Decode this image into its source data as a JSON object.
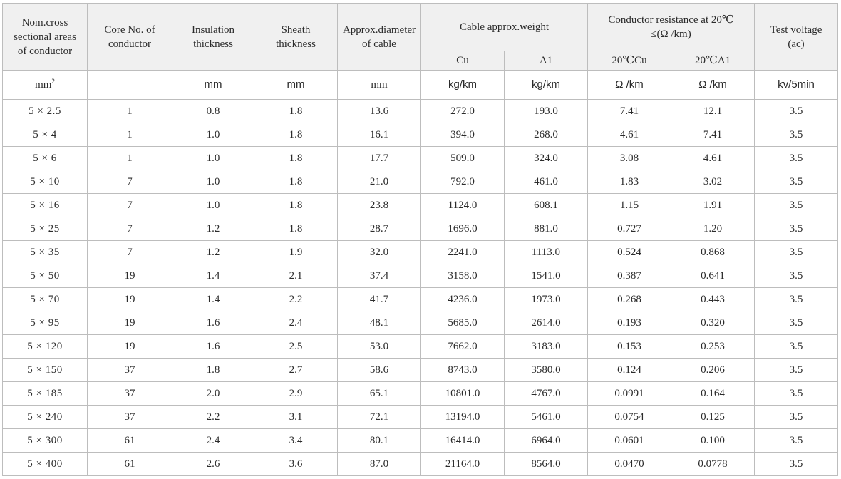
{
  "headers": {
    "nom_cross": [
      "Nom.cross",
      "sectional areas",
      "of conductor"
    ],
    "core_no": [
      "Core No. of",
      "conductor"
    ],
    "insulation": [
      "Insulation",
      "thickness"
    ],
    "sheath": [
      "Sheath",
      "thickness"
    ],
    "diameter": [
      "Approx.diameter",
      "of cable"
    ],
    "weight": "Cable approx.weight",
    "weight_cu": "Cu",
    "weight_al": "A1",
    "resistance": [
      "Conductor resistance at 20℃",
      "≤(Ω /km)"
    ],
    "res_cu": "20℃Cu",
    "res_al": "20℃A1",
    "test_voltage": [
      "Test voltage",
      "(ac)"
    ]
  },
  "units": {
    "nom_cross_base": "mm",
    "nom_cross_sup": "2",
    "core_no": "",
    "insulation": "mm",
    "sheath": "mm",
    "diameter": "mm",
    "weight_cu": "kg/km",
    "weight_al": "kg/km",
    "res_cu": "Ω /km",
    "res_al": "Ω /km",
    "test_voltage": "kv/5min"
  },
  "rows": [
    {
      "size": "5 × 2.5",
      "core": "1",
      "ins": "0.8",
      "sheath": "1.8",
      "dia": "13.6",
      "wcu": "272.0",
      "wal": "193.0",
      "rcu": "7.41",
      "ral": "12.1",
      "tv": "3.5"
    },
    {
      "size": "5 × 4",
      "core": "1",
      "ins": "1.0",
      "sheath": "1.8",
      "dia": "16.1",
      "wcu": "394.0",
      "wal": "268.0",
      "rcu": "4.61",
      "ral": "7.41",
      "tv": "3.5"
    },
    {
      "size": "5 × 6",
      "core": "1",
      "ins": "1.0",
      "sheath": "1.8",
      "dia": "17.7",
      "wcu": "509.0",
      "wal": "324.0",
      "rcu": "3.08",
      "ral": "4.61",
      "tv": "3.5"
    },
    {
      "size": "5 × 10",
      "core": "7",
      "ins": "1.0",
      "sheath": "1.8",
      "dia": "21.0",
      "wcu": "792.0",
      "wal": "461.0",
      "rcu": "1.83",
      "ral": "3.02",
      "tv": "3.5"
    },
    {
      "size": "5 × 16",
      "core": "7",
      "ins": "1.0",
      "sheath": "1.8",
      "dia": "23.8",
      "wcu": "1124.0",
      "wal": "608.1",
      "rcu": "1.15",
      "ral": "1.91",
      "tv": "3.5"
    },
    {
      "size": "5 × 25",
      "core": "7",
      "ins": "1.2",
      "sheath": "1.8",
      "dia": "28.7",
      "wcu": "1696.0",
      "wal": "881.0",
      "rcu": "0.727",
      "ral": "1.20",
      "tv": "3.5"
    },
    {
      "size": "5 × 35",
      "core": "7",
      "ins": "1.2",
      "sheath": "1.9",
      "dia": "32.0",
      "wcu": "2241.0",
      "wal": "1113.0",
      "rcu": "0.524",
      "ral": "0.868",
      "tv": "3.5"
    },
    {
      "size": "5 × 50",
      "core": "19",
      "ins": "1.4",
      "sheath": "2.1",
      "dia": "37.4",
      "wcu": "3158.0",
      "wal": "1541.0",
      "rcu": "0.387",
      "ral": "0.641",
      "tv": "3.5"
    },
    {
      "size": "5 × 70",
      "core": "19",
      "ins": "1.4",
      "sheath": "2.2",
      "dia": "41.7",
      "wcu": "4236.0",
      "wal": "1973.0",
      "rcu": "0.268",
      "ral": "0.443",
      "tv": "3.5"
    },
    {
      "size": "5 × 95",
      "core": "19",
      "ins": "1.6",
      "sheath": "2.4",
      "dia": "48.1",
      "wcu": "5685.0",
      "wal": "2614.0",
      "rcu": "0.193",
      "ral": "0.320",
      "tv": "3.5"
    },
    {
      "size": "5 × 120",
      "core": "19",
      "ins": "1.6",
      "sheath": "2.5",
      "dia": "53.0",
      "wcu": "7662.0",
      "wal": "3183.0",
      "rcu": "0.153",
      "ral": "0.253",
      "tv": "3.5"
    },
    {
      "size": "5 × 150",
      "core": "37",
      "ins": "1.8",
      "sheath": "2.7",
      "dia": "58.6",
      "wcu": "8743.0",
      "wal": "3580.0",
      "rcu": "0.124",
      "ral": "0.206",
      "tv": "3.5"
    },
    {
      "size": "5 × 185",
      "core": "37",
      "ins": "2.0",
      "sheath": "2.9",
      "dia": "65.1",
      "wcu": "10801.0",
      "wal": "4767.0",
      "rcu": "0.0991",
      "ral": "0.164",
      "tv": "3.5"
    },
    {
      "size": "5 × 240",
      "core": "37",
      "ins": "2.2",
      "sheath": "3.1",
      "dia": "72.1",
      "wcu": "13194.0",
      "wal": "5461.0",
      "rcu": "0.0754",
      "ral": "0.125",
      "tv": "3.5"
    },
    {
      "size": "5 × 300",
      "core": "61",
      "ins": "2.4",
      "sheath": "3.4",
      "dia": "80.1",
      "wcu": "16414.0",
      "wal": "6964.0",
      "rcu": "0.0601",
      "ral": "0.100",
      "tv": "3.5"
    },
    {
      "size": "5 × 400",
      "core": "61",
      "ins": "2.6",
      "sheath": "3.6",
      "dia": "87.0",
      "wcu": "21164.0",
      "wal": "8564.0",
      "rcu": "0.0470",
      "ral": "0.0778",
      "tv": "3.5"
    }
  ]
}
